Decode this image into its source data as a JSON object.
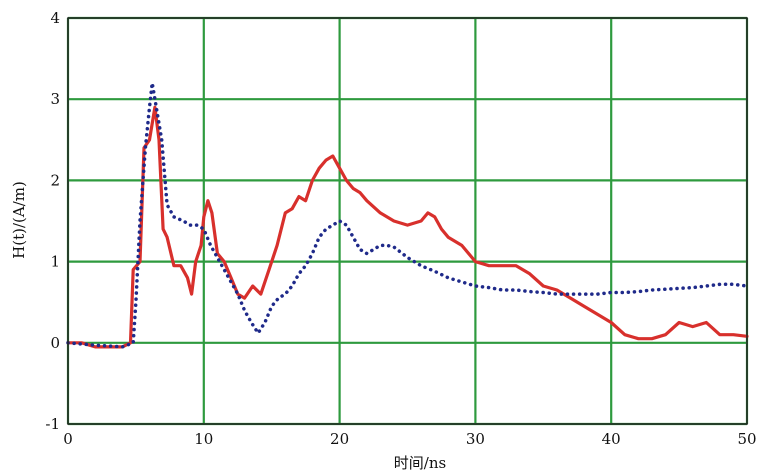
{
  "chart_data": {
    "type": "line",
    "xlabel": "时间/ns",
    "ylabel": "H(t)/(A/m)",
    "xlim": [
      0,
      50
    ],
    "ylim": [
      -1,
      4
    ],
    "x_ticks": [
      "0",
      "10",
      "20",
      "30",
      "40",
      "50"
    ],
    "y_ticks": [
      "-1",
      "0",
      "1",
      "2",
      "3",
      "4"
    ],
    "grid": true,
    "grid_color": "#2e9a3e",
    "series": [
      {
        "style": "solid",
        "color": "#d8302c",
        "points": [
          [
            0,
            0.0
          ],
          [
            1,
            0.0
          ],
          [
            2,
            -0.05
          ],
          [
            3,
            -0.05
          ],
          [
            4,
            -0.05
          ],
          [
            4.6,
            0.0
          ],
          [
            4.8,
            0.9
          ],
          [
            5.3,
            1.0
          ],
          [
            5.6,
            2.4
          ],
          [
            6.0,
            2.5
          ],
          [
            6.4,
            2.9
          ],
          [
            6.7,
            2.5
          ],
          [
            7.0,
            1.4
          ],
          [
            7.3,
            1.3
          ],
          [
            7.8,
            0.95
          ],
          [
            8.3,
            0.95
          ],
          [
            8.8,
            0.8
          ],
          [
            9.1,
            0.6
          ],
          [
            9.4,
            1.0
          ],
          [
            9.8,
            1.2
          ],
          [
            10.0,
            1.55
          ],
          [
            10.3,
            1.75
          ],
          [
            10.6,
            1.6
          ],
          [
            11.0,
            1.1
          ],
          [
            11.5,
            1.0
          ],
          [
            12.0,
            0.8
          ],
          [
            12.5,
            0.6
          ],
          [
            13.0,
            0.55
          ],
          [
            13.6,
            0.7
          ],
          [
            14.2,
            0.6
          ],
          [
            14.8,
            0.9
          ],
          [
            15.4,
            1.2
          ],
          [
            16.0,
            1.6
          ],
          [
            16.5,
            1.65
          ],
          [
            17.0,
            1.8
          ],
          [
            17.5,
            1.75
          ],
          [
            18.0,
            2.0
          ],
          [
            18.5,
            2.15
          ],
          [
            19.0,
            2.25
          ],
          [
            19.5,
            2.3
          ],
          [
            20.0,
            2.15
          ],
          [
            20.5,
            2.0
          ],
          [
            21.0,
            1.9
          ],
          [
            21.5,
            1.85
          ],
          [
            22.0,
            1.75
          ],
          [
            23.0,
            1.6
          ],
          [
            24.0,
            1.5
          ],
          [
            25.0,
            1.45
          ],
          [
            26.0,
            1.5
          ],
          [
            26.5,
            1.6
          ],
          [
            27.0,
            1.55
          ],
          [
            27.5,
            1.4
          ],
          [
            28.0,
            1.3
          ],
          [
            29.0,
            1.2
          ],
          [
            30.0,
            1.0
          ],
          [
            31.0,
            0.95
          ],
          [
            32.0,
            0.95
          ],
          [
            33.0,
            0.95
          ],
          [
            34.0,
            0.85
          ],
          [
            35.0,
            0.7
          ],
          [
            36.0,
            0.65
          ],
          [
            37.0,
            0.55
          ],
          [
            38.0,
            0.45
          ],
          [
            39.0,
            0.35
          ],
          [
            40.0,
            0.25
          ],
          [
            41.0,
            0.1
          ],
          [
            42.0,
            0.05
          ],
          [
            43.0,
            0.05
          ],
          [
            44.0,
            0.1
          ],
          [
            45.0,
            0.25
          ],
          [
            46.0,
            0.2
          ],
          [
            47.0,
            0.25
          ],
          [
            48.0,
            0.1
          ],
          [
            49.0,
            0.1
          ],
          [
            50.0,
            0.08
          ]
        ]
      },
      {
        "style": "dotted",
        "color": "#1f2a8a",
        "points": [
          [
            0,
            0.0
          ],
          [
            2,
            -0.03
          ],
          [
            4,
            -0.05
          ],
          [
            4.8,
            0.0
          ],
          [
            5.0,
            0.5
          ],
          [
            5.3,
            1.5
          ],
          [
            5.7,
            2.4
          ],
          [
            6.0,
            2.9
          ],
          [
            6.2,
            3.2
          ],
          [
            6.5,
            2.9
          ],
          [
            6.9,
            2.5
          ],
          [
            7.3,
            1.7
          ],
          [
            7.8,
            1.55
          ],
          [
            8.5,
            1.5
          ],
          [
            9.0,
            1.45
          ],
          [
            9.5,
            1.45
          ],
          [
            10.0,
            1.4
          ],
          [
            10.5,
            1.2
          ],
          [
            11.0,
            1.05
          ],
          [
            11.5,
            0.9
          ],
          [
            12.0,
            0.75
          ],
          [
            12.5,
            0.6
          ],
          [
            13.0,
            0.4
          ],
          [
            13.5,
            0.25
          ],
          [
            14.0,
            0.12
          ],
          [
            14.5,
            0.25
          ],
          [
            15.0,
            0.45
          ],
          [
            15.5,
            0.55
          ],
          [
            16.0,
            0.6
          ],
          [
            16.5,
            0.7
          ],
          [
            17.0,
            0.85
          ],
          [
            17.5,
            0.95
          ],
          [
            18.0,
            1.1
          ],
          [
            18.5,
            1.3
          ],
          [
            19.0,
            1.4
          ],
          [
            19.5,
            1.45
          ],
          [
            20.0,
            1.5
          ],
          [
            20.5,
            1.45
          ],
          [
            21.0,
            1.3
          ],
          [
            21.5,
            1.15
          ],
          [
            22.0,
            1.1
          ],
          [
            22.5,
            1.15
          ],
          [
            23.0,
            1.2
          ],
          [
            23.5,
            1.2
          ],
          [
            24.0,
            1.18
          ],
          [
            25.0,
            1.05
          ],
          [
            26.0,
            0.95
          ],
          [
            27.0,
            0.88
          ],
          [
            28.0,
            0.8
          ],
          [
            29.0,
            0.75
          ],
          [
            30.0,
            0.7
          ],
          [
            31.0,
            0.68
          ],
          [
            32.0,
            0.65
          ],
          [
            33.0,
            0.65
          ],
          [
            34.0,
            0.63
          ],
          [
            35.0,
            0.62
          ],
          [
            36.0,
            0.6
          ],
          [
            37.0,
            0.6
          ],
          [
            38.0,
            0.6
          ],
          [
            39.0,
            0.6
          ],
          [
            40.0,
            0.62
          ],
          [
            41.0,
            0.62
          ],
          [
            42.0,
            0.63
          ],
          [
            43.0,
            0.65
          ],
          [
            44.0,
            0.66
          ],
          [
            45.0,
            0.67
          ],
          [
            46.0,
            0.68
          ],
          [
            47.0,
            0.7
          ],
          [
            48.0,
            0.72
          ],
          [
            49.0,
            0.72
          ],
          [
            50.0,
            0.7
          ]
        ]
      }
    ]
  }
}
